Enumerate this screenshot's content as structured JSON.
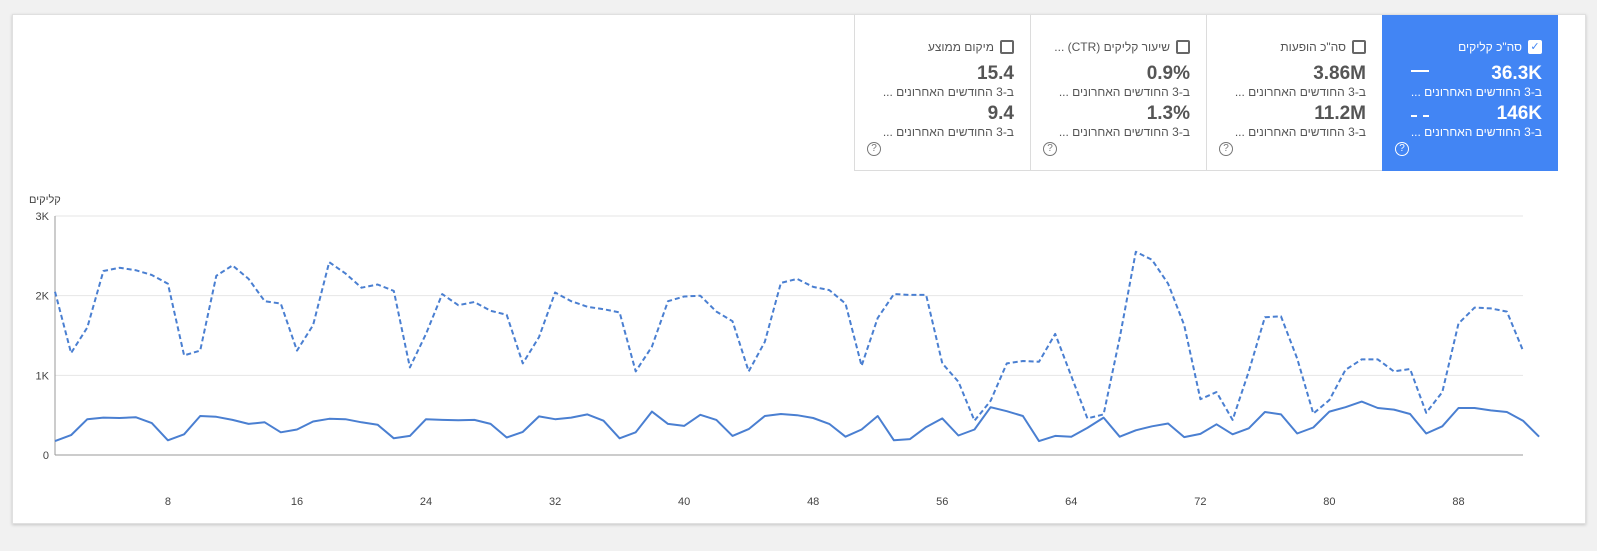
{
  "metrics": [
    {
      "title": "סה\"כ קליקים",
      "checked": true,
      "value1": "36.3K",
      "sub1": "ב-3 החודשים האחרונים ...",
      "value2": "146K",
      "sub2": "ב-3 החודשים האחרונים ...",
      "help": "?"
    },
    {
      "title": "סה\"כ הופעות",
      "checked": false,
      "value1": "3.86M",
      "sub1": "ב-3 החודשים האחרונים ...",
      "value2": "11.2M",
      "sub2": "ב-3 החודשים האחרונים ...",
      "help": "?"
    },
    {
      "title": "שיעור קליקים (CTR) ...",
      "checked": false,
      "value1": "0.9%",
      "sub1": "ב-3 החודשים האחרונים ...",
      "value2": "1.3%",
      "sub2": "ב-3 החודשים האחרונים ...",
      "help": "?"
    },
    {
      "title": "מיקום ממוצע",
      "checked": false,
      "value1": "15.4",
      "sub1": "ב-3 החודשים האחרונים ...",
      "value2": "9.4",
      "sub2": "ב-3 החודשים האחרונים ...",
      "help": "?"
    }
  ],
  "colors": {
    "accent": "#4285f4",
    "line": "#4a7fd1"
  },
  "chart_data": {
    "type": "line",
    "ylabel": "קליקים",
    "ylim": [
      0,
      3000
    ],
    "yticks": [
      "0",
      "1K",
      "2K",
      "3K"
    ],
    "xticks": [
      "8",
      "16",
      "24",
      "32",
      "40",
      "48",
      "56",
      "64",
      "72",
      "80",
      "88"
    ],
    "xtick_values": [
      8,
      16,
      24,
      32,
      40,
      48,
      56,
      64,
      72,
      80,
      88
    ],
    "xlim": [
      1,
      92
    ],
    "grid": true,
    "series": [
      {
        "style": "solid",
        "values": [
          175,
          250,
          450,
          470,
          465,
          475,
          400,
          185,
          260,
          490,
          480,
          440,
          390,
          410,
          285,
          320,
          420,
          455,
          450,
          410,
          380,
          210,
          240,
          450,
          440,
          435,
          440,
          390,
          220,
          290,
          485,
          450,
          470,
          510,
          430,
          210,
          285,
          545,
          390,
          365,
          505,
          440,
          240,
          325,
          490,
          515,
          500,
          465,
          390,
          230,
          320,
          490,
          185,
          200,
          350,
          460,
          245,
          320,
          600,
          550,
          490,
          175,
          240,
          230,
          340,
          470,
          230,
          310,
          360,
          395,
          225,
          265,
          385,
          260,
          335,
          540,
          510,
          270,
          345,
          545,
          600,
          670,
          590,
          570,
          515,
          270,
          360,
          590,
          590,
          560,
          540,
          430,
          230
        ]
      },
      {
        "style": "dashed",
        "values": [
          2050,
          1280,
          1600,
          2310,
          2350,
          2320,
          2260,
          2150,
          1250,
          1310,
          2250,
          2380,
          2210,
          1930,
          1900,
          1310,
          1630,
          2420,
          2280,
          2100,
          2140,
          2060,
          1100,
          1520,
          2020,
          1880,
          1920,
          1810,
          1760,
          1150,
          1480,
          2040,
          1930,
          1860,
          1830,
          1790,
          1050,
          1360,
          1930,
          1990,
          2000,
          1800,
          1680,
          1050,
          1420,
          2160,
          2210,
          2110,
          2070,
          1900,
          1120,
          1720,
          2020,
          2010,
          2010,
          1150,
          920,
          430,
          680,
          1150,
          1180,
          1170,
          1520,
          990,
          460,
          510,
          1470,
          2550,
          2450,
          2150,
          1630,
          700,
          790,
          440,
          1050,
          1730,
          1740,
          1210,
          520,
          690,
          1070,
          1200,
          1200,
          1050,
          1080,
          530,
          790,
          1650,
          1850,
          1840,
          1800,
          1310
        ]
      }
    ]
  }
}
